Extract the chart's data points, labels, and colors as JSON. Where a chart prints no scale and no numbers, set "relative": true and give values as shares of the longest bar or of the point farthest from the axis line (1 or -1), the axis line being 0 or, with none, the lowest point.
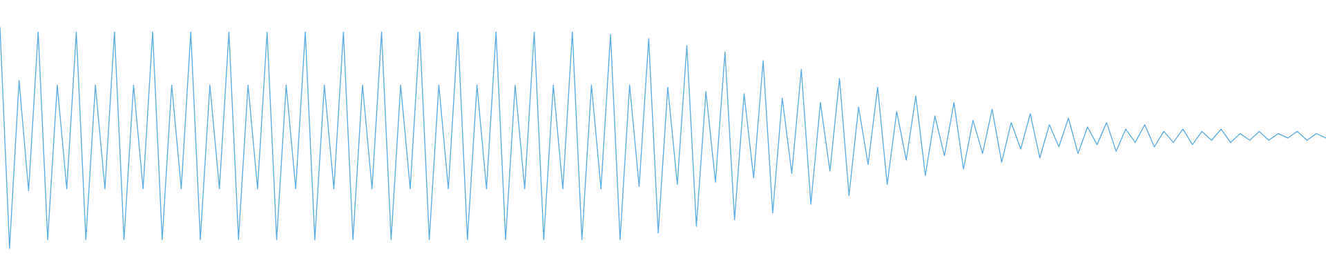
{
  "chart_data": {
    "type": "line",
    "relative": true,
    "grid": false,
    "legend": false,
    "marker": "none",
    "line_style": "solid",
    "tick_labels": false,
    "categories": [
      null,
      null,
      null,
      null,
      null,
      null,
      null,
      null,
      null,
      null,
      null,
      null,
      null,
      null,
      null,
      null,
      null,
      null,
      null,
      null,
      null,
      null,
      null,
      null,
      null,
      null,
      null,
      null,
      null,
      null,
      null,
      null,
      null,
      null,
      null,
      null,
      null,
      null,
      null,
      null,
      null,
      null,
      null,
      null,
      null,
      null,
      null,
      null,
      null,
      null,
      null,
      null,
      null,
      null,
      null,
      null,
      null,
      null,
      null,
      null,
      null,
      null,
      null,
      null,
      null,
      null,
      null,
      null,
      null,
      null,
      null,
      null,
      null,
      null,
      null,
      null,
      null,
      null,
      null,
      null,
      null,
      null,
      null,
      null,
      null,
      null,
      null,
      null,
      null,
      null,
      null,
      null,
      null,
      null,
      null,
      null,
      null,
      null,
      null,
      null,
      null,
      null,
      null,
      null,
      null,
      null,
      null,
      null,
      null,
      null,
      null,
      null,
      null,
      null,
      null,
      null,
      null,
      null,
      null,
      null,
      null,
      null,
      null,
      null,
      null,
      null,
      null,
      null,
      null,
      null,
      null,
      null,
      null,
      null,
      null,
      null,
      null,
      null,
      null,
      null
    ],
    "series": [
      {
        "color": "#5dade2",
        "values": [
          1.0,
          0.0,
          0.76,
          0.26,
          0.98,
          0.04,
          0.74,
          0.27,
          0.98,
          0.04,
          0.74,
          0.27,
          0.98,
          0.04,
          0.74,
          0.27,
          0.98,
          0.04,
          0.74,
          0.27,
          0.98,
          0.04,
          0.74,
          0.27,
          0.98,
          0.04,
          0.74,
          0.27,
          0.98,
          0.04,
          0.74,
          0.27,
          0.98,
          0.04,
          0.74,
          0.27,
          0.98,
          0.04,
          0.74,
          0.27,
          0.98,
          0.04,
          0.74,
          0.27,
          0.98,
          0.04,
          0.74,
          0.27,
          0.98,
          0.04,
          0.74,
          0.27,
          0.98,
          0.04,
          0.74,
          0.27,
          0.98,
          0.04,
          0.74,
          0.27,
          0.98,
          0.04,
          0.74,
          0.27,
          0.97,
          0.04,
          0.74,
          0.28,
          0.95,
          0.07,
          0.73,
          0.29,
          0.92,
          0.1,
          0.71,
          0.3,
          0.89,
          0.13,
          0.7,
          0.32,
          0.85,
          0.16,
          0.68,
          0.34,
          0.81,
          0.2,
          0.66,
          0.35,
          0.77,
          0.24,
          0.64,
          0.38,
          0.73,
          0.29,
          0.62,
          0.4,
          0.69,
          0.33,
          0.6,
          0.42,
          0.66,
          0.36,
          0.58,
          0.43,
          0.63,
          0.39,
          0.57,
          0.45,
          0.61,
          0.41,
          0.56,
          0.46,
          0.59,
          0.43,
          0.55,
          0.47,
          0.57,
          0.44,
          0.54,
          0.48,
          0.56,
          0.46,
          0.53,
          0.48,
          0.54,
          0.47,
          0.53,
          0.49,
          0.54,
          0.48,
          0.52,
          0.49,
          0.53,
          0.49,
          0.52,
          0.5,
          0.53,
          0.49,
          0.52,
          0.5
        ]
      }
    ]
  }
}
